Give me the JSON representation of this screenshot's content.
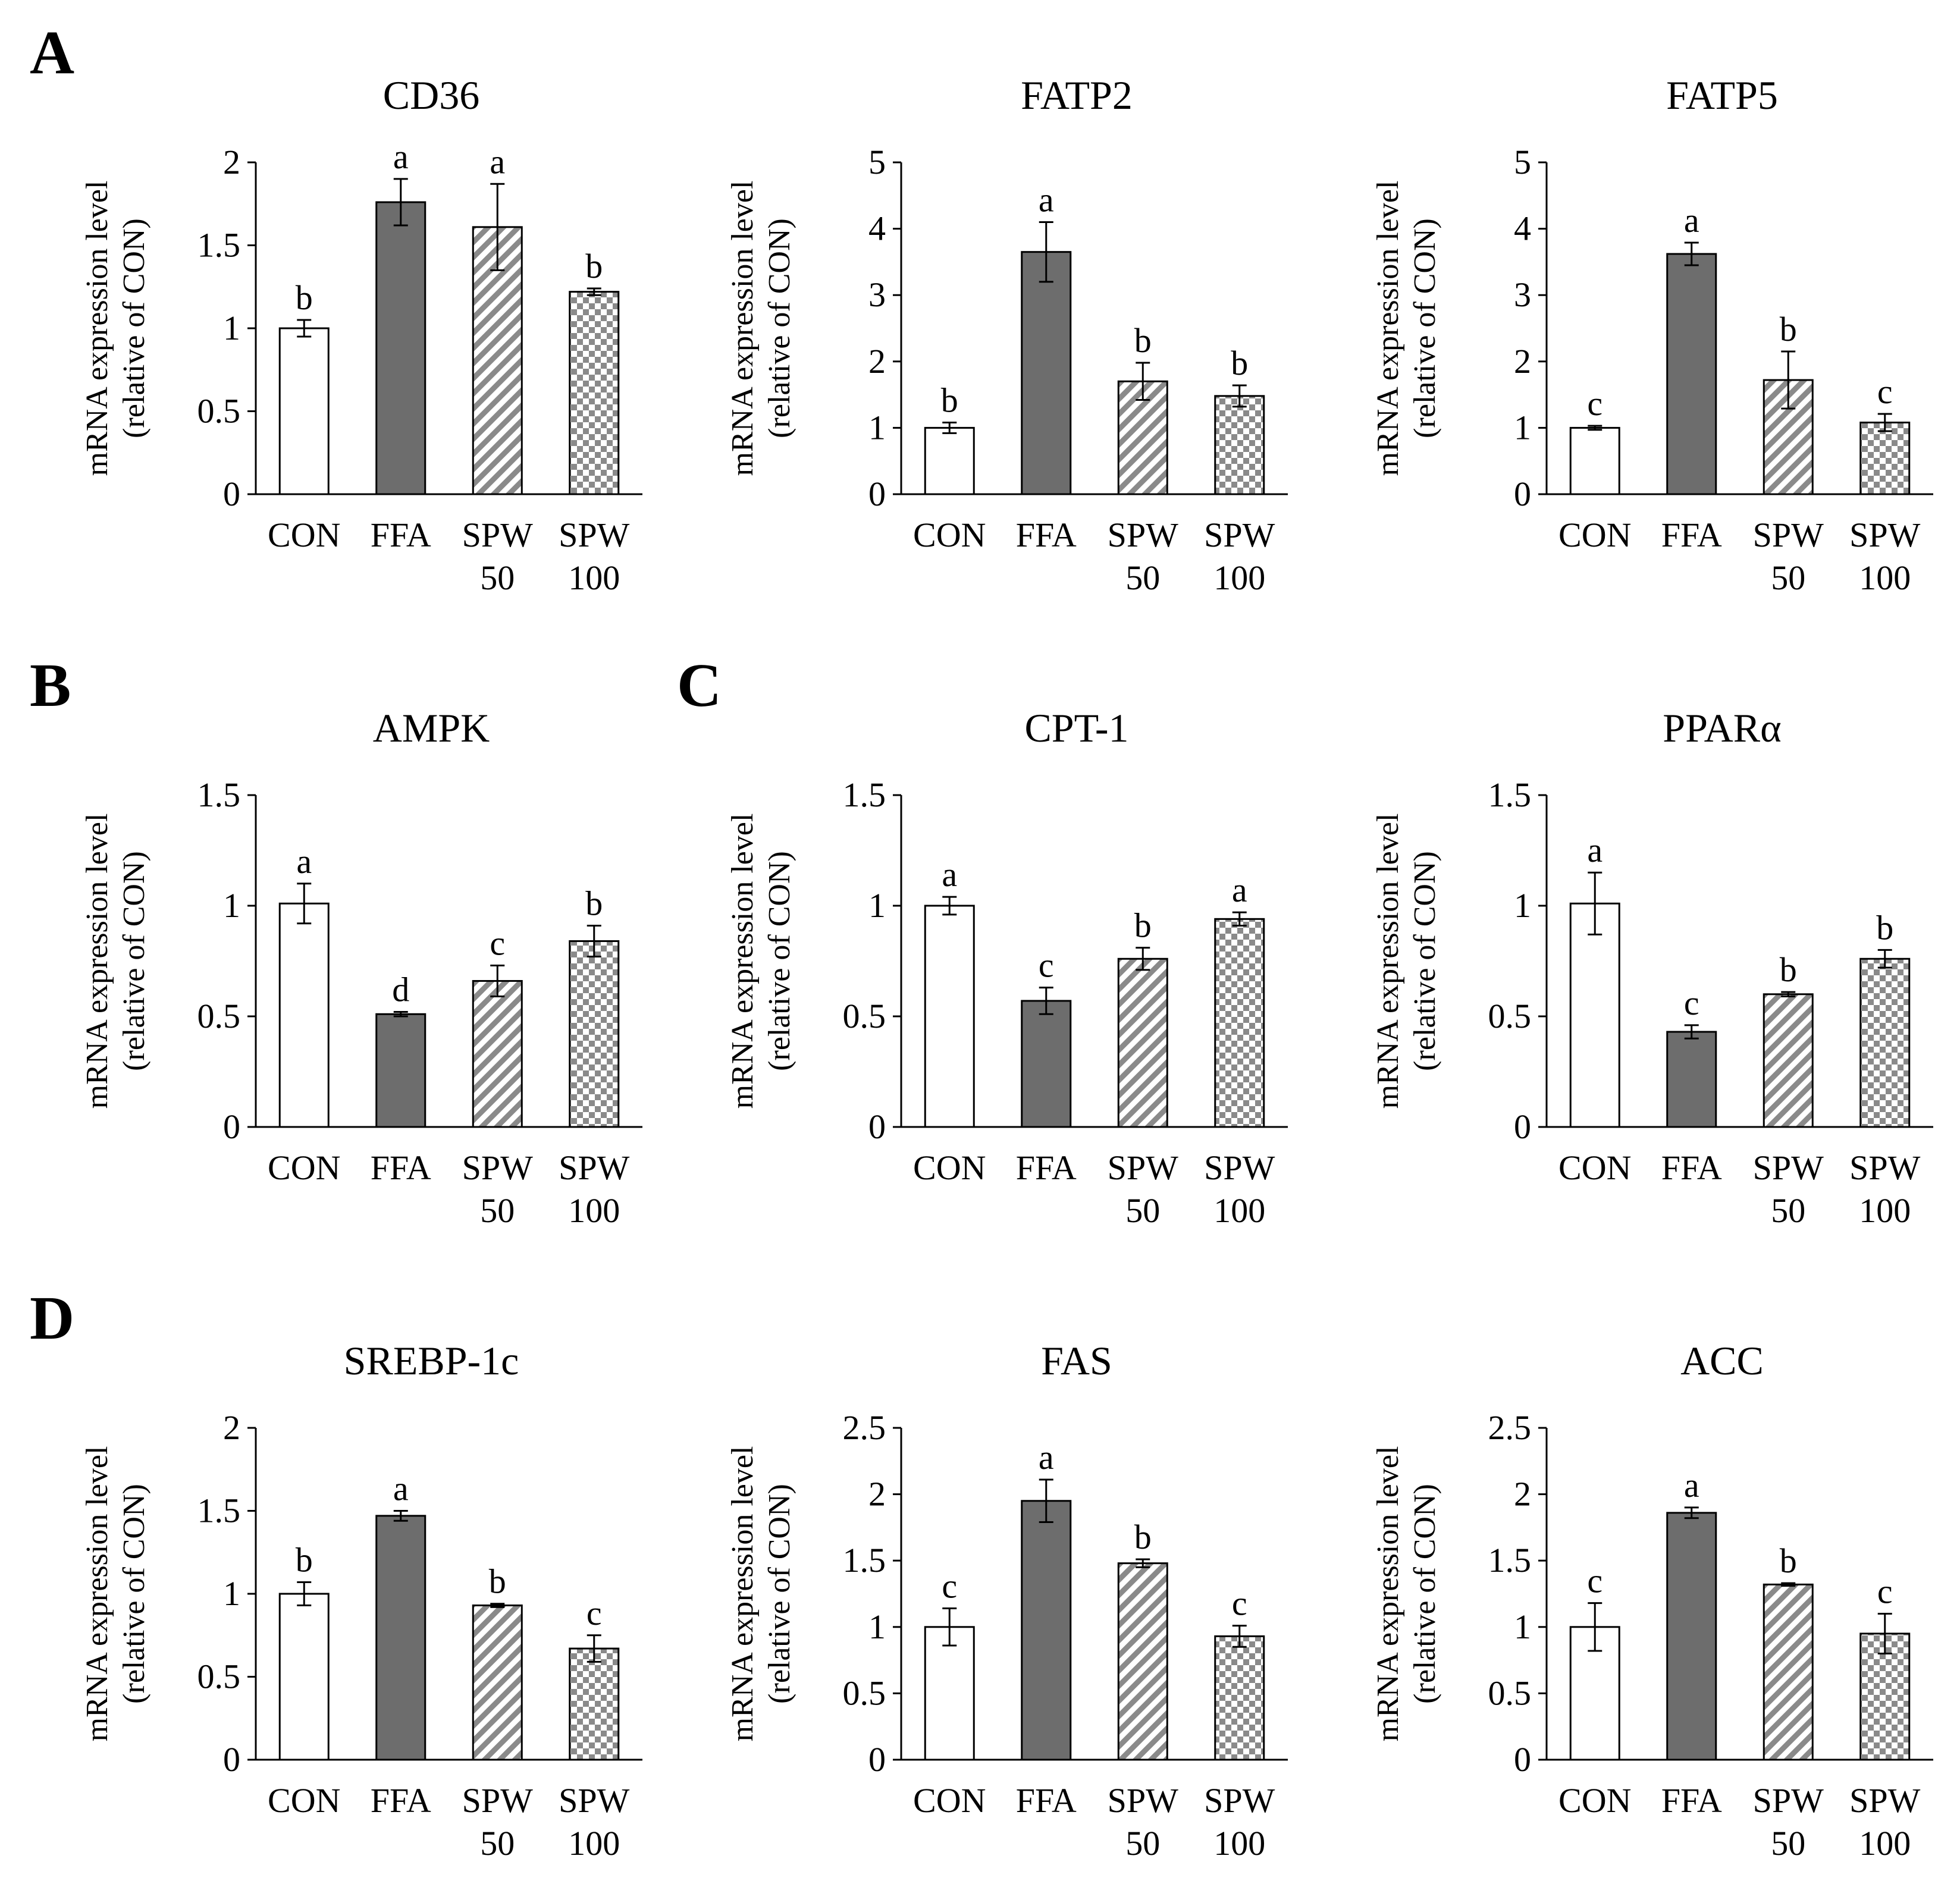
{
  "figure": {
    "panel_labels": [
      "A",
      "B",
      "C",
      "D"
    ]
  },
  "styles": {
    "bar_fill_con": "#ffffff",
    "bar_fill_ffa": "#6d6d6d",
    "pattern_stripe": "#8a8a8a",
    "pattern_check": "#8a8a8a",
    "stroke": "#000000"
  },
  "chart_data": [
    {
      "type": "bar",
      "title": "CD36",
      "ylabel": [
        "mRNA expression level",
        "(relative of CON)"
      ],
      "ylim": [
        0,
        2
      ],
      "yticks": [
        "0",
        "0.5",
        "1",
        "1.5",
        "2"
      ],
      "categories": [
        [
          "CON"
        ],
        [
          "FFA"
        ],
        [
          "SPW",
          "50"
        ],
        [
          "SPW",
          "100"
        ]
      ],
      "values": [
        1.0,
        1.76,
        1.61,
        1.22
      ],
      "errors": [
        0.05,
        0.14,
        0.26,
        0.02
      ],
      "letters": [
        "b",
        "a",
        "a",
        "b"
      ]
    },
    {
      "type": "bar",
      "title": "FATP2",
      "ylabel": [
        "mRNA expression level",
        "(relative of CON)"
      ],
      "ylim": [
        0,
        5
      ],
      "yticks": [
        "0",
        "1",
        "2",
        "3",
        "4",
        "5"
      ],
      "categories": [
        [
          "CON"
        ],
        [
          "FFA"
        ],
        [
          "SPW",
          "50"
        ],
        [
          "SPW",
          "100"
        ]
      ],
      "values": [
        1.0,
        3.65,
        1.7,
        1.48
      ],
      "errors": [
        0.08,
        0.45,
        0.28,
        0.16
      ],
      "letters": [
        "b",
        "a",
        "b",
        "b"
      ]
    },
    {
      "type": "bar",
      "title": "FATP5",
      "ylabel": [
        "mRNA expression level",
        "(relative of CON)"
      ],
      "ylim": [
        0,
        5
      ],
      "yticks": [
        "0",
        "1",
        "2",
        "3",
        "4",
        "5"
      ],
      "categories": [
        [
          "CON"
        ],
        [
          "FFA"
        ],
        [
          "SPW",
          "50"
        ],
        [
          "SPW",
          "100"
        ]
      ],
      "values": [
        1.0,
        3.62,
        1.72,
        1.08
      ],
      "errors": [
        0.03,
        0.17,
        0.43,
        0.13
      ],
      "letters": [
        "c",
        "a",
        "b",
        "c"
      ]
    },
    {
      "type": "bar",
      "title": "AMPK",
      "ylabel": [
        "mRNA expression level",
        "(relative of CON)"
      ],
      "ylim": [
        0,
        1.5
      ],
      "yticks": [
        "0",
        "0.5",
        "1",
        "1.5"
      ],
      "categories": [
        [
          "CON"
        ],
        [
          "FFA"
        ],
        [
          "SPW",
          "50"
        ],
        [
          "SPW",
          "100"
        ]
      ],
      "values": [
        1.01,
        0.51,
        0.66,
        0.84
      ],
      "errors": [
        0.09,
        0.01,
        0.07,
        0.07
      ],
      "letters": [
        "a",
        "d",
        "c",
        "b"
      ]
    },
    {
      "type": "bar",
      "title": "CPT-1",
      "ylabel": [
        "mRNA expression level",
        "(relative of CON)"
      ],
      "ylim": [
        0,
        1.5
      ],
      "yticks": [
        "0",
        "0.5",
        "1",
        "1.5"
      ],
      "categories": [
        [
          "CON"
        ],
        [
          "FFA"
        ],
        [
          "SPW",
          "50"
        ],
        [
          "SPW",
          "100"
        ]
      ],
      "values": [
        1.0,
        0.57,
        0.76,
        0.94
      ],
      "errors": [
        0.04,
        0.06,
        0.05,
        0.03
      ],
      "letters": [
        "a",
        "c",
        "b",
        "a"
      ]
    },
    {
      "type": "bar",
      "title": "PPARα",
      "ylabel": [
        "mRNA expression level",
        "(relative of CON)"
      ],
      "ylim": [
        0,
        1.5
      ],
      "yticks": [
        "0",
        "0.5",
        "1",
        "1.5"
      ],
      "categories": [
        [
          "CON"
        ],
        [
          "FFA"
        ],
        [
          "SPW",
          "50"
        ],
        [
          "SPW",
          "100"
        ]
      ],
      "values": [
        1.01,
        0.43,
        0.6,
        0.76
      ],
      "errors": [
        0.14,
        0.03,
        0.01,
        0.04
      ],
      "letters": [
        "a",
        "c",
        "b",
        "b"
      ]
    },
    {
      "type": "bar",
      "title": "SREBP-1c",
      "ylabel": [
        "mRNA expression level",
        "(relative of CON)"
      ],
      "ylim": [
        0,
        2
      ],
      "yticks": [
        "0",
        "0.5",
        "1",
        "1.5",
        "2"
      ],
      "categories": [
        [
          "CON"
        ],
        [
          "FFA"
        ],
        [
          "SPW",
          "50"
        ],
        [
          "SPW",
          "100"
        ]
      ],
      "values": [
        1.0,
        1.47,
        0.93,
        0.67
      ],
      "errors": [
        0.07,
        0.03,
        0.01,
        0.08
      ],
      "letters": [
        "b",
        "a",
        "b",
        "c"
      ]
    },
    {
      "type": "bar",
      "title": "FAS",
      "ylabel": [
        "mRNA expression level",
        "(relative of CON)"
      ],
      "ylim": [
        0,
        2.5
      ],
      "yticks": [
        "0",
        "0.5",
        "1",
        "1.5",
        "2",
        "2.5"
      ],
      "categories": [
        [
          "CON"
        ],
        [
          "FFA"
        ],
        [
          "SPW",
          "50"
        ],
        [
          "SPW",
          "100"
        ]
      ],
      "values": [
        1.0,
        1.95,
        1.48,
        0.93
      ],
      "errors": [
        0.14,
        0.16,
        0.03,
        0.08
      ],
      "letters": [
        "c",
        "a",
        "b",
        "c"
      ]
    },
    {
      "type": "bar",
      "title": "ACC",
      "ylabel": [
        "mRNA expression level",
        "(relative of CON)"
      ],
      "ylim": [
        0,
        2.5
      ],
      "yticks": [
        "0",
        "0.5",
        "1",
        "1.5",
        "2",
        "2.5"
      ],
      "categories": [
        [
          "CON"
        ],
        [
          "FFA"
        ],
        [
          "SPW",
          "50"
        ],
        [
          "SPW",
          "100"
        ]
      ],
      "values": [
        1.0,
        1.86,
        1.32,
        0.95
      ],
      "errors": [
        0.18,
        0.04,
        0.01,
        0.15
      ],
      "letters": [
        "c",
        "a",
        "b",
        "c"
      ]
    }
  ]
}
